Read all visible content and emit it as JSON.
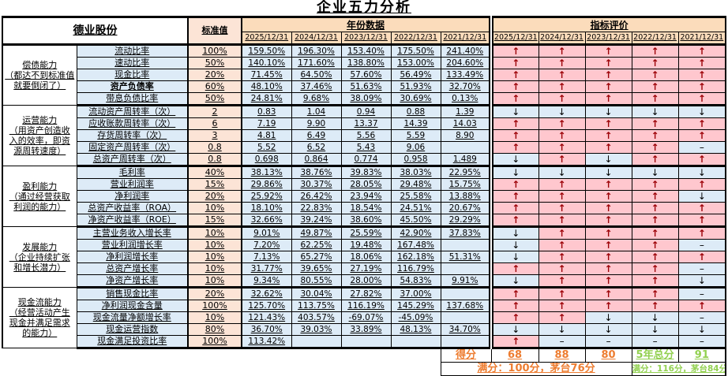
{
  "title": "企业五力分析",
  "company": "德业股份",
  "header": {
    "standard_col": "标准值",
    "data_group": "年份数据",
    "eval_group": "指标评价",
    "years": [
      "2025/12/31",
      "2024/12/31",
      "2023/12/31",
      "2022/12/31",
      "2021/12/31"
    ]
  },
  "eval_glyphs": {
    "up": "↑",
    "down": "↓",
    "dash": "–"
  },
  "colors": {
    "header_bg": "#FBDCBB",
    "standard_bg": "#FCE4D6",
    "data_bg": "#DDEBF7",
    "eval_up_bg": "#FFC7CE",
    "eval_up_arrow": "#9C0006",
    "score_orange": "#ED7D31",
    "score_green": "#92D050"
  },
  "sections": [
    {
      "name": "偿债能力\n（都达不到标准值\n就要倒闭了）",
      "rows": [
        {
          "name": "流动比率",
          "bold": false,
          "std": "100%",
          "values": [
            "159.50%",
            "196.30%",
            "153.40%",
            "175.50%",
            "241.40%"
          ],
          "evals": [
            "up",
            "up",
            "up",
            "up",
            "up"
          ]
        },
        {
          "name": "速动比率",
          "bold": false,
          "std": "50%",
          "values": [
            "140.10%",
            "171.60%",
            "138.80%",
            "153.00%",
            "204.60%"
          ],
          "evals": [
            "up",
            "up",
            "up",
            "up",
            "up"
          ]
        },
        {
          "name": "现金比率",
          "bold": false,
          "std": "20%",
          "values": [
            "71.45%",
            "64.50%",
            "57.60%",
            "56.49%",
            "133.49%"
          ],
          "evals": [
            "up",
            "up",
            "up",
            "up",
            "up"
          ]
        },
        {
          "name": "资产负债率",
          "bold": true,
          "std": "60%",
          "values": [
            "48.10%",
            "37.46%",
            "51.63%",
            "51.93%",
            "32.70%"
          ],
          "evals": [
            "up",
            "up",
            "up",
            "up",
            "up"
          ]
        },
        {
          "name": "带息负债比率",
          "bold": false,
          "std": "50%",
          "values": [
            "24.81%",
            "9.68%",
            "38.09%",
            "30.69%",
            "0.13%"
          ],
          "evals": [
            "up",
            "up",
            "up",
            "up",
            "up"
          ]
        }
      ]
    },
    {
      "name": "运营能力\n（用资产创造收\n入的效率，即资\n源周转速度）",
      "rows": [
        {
          "name": "流动资产周转率（次）",
          "bold": false,
          "std": "2",
          "values": [
            "0.83",
            "1.04",
            "0.94",
            "0.88",
            "1.39"
          ],
          "evals": [
            "down",
            "down",
            "down",
            "down",
            "down"
          ]
        },
        {
          "name": "应收账款周转率（次）",
          "bold": false,
          "std": "6",
          "values": [
            "7.19",
            "9.90",
            "13.37",
            "14.39",
            "14.03"
          ],
          "evals": [
            "up",
            "up",
            "up",
            "up",
            "up"
          ]
        },
        {
          "name": "存货周转率（次）",
          "bold": false,
          "std": "3",
          "values": [
            "4.81",
            "6.49",
            "5.56",
            "5.59",
            "8.90"
          ],
          "evals": [
            "up",
            "up",
            "up",
            "up",
            "up"
          ]
        },
        {
          "name": "固定资产周转率（次）",
          "bold": false,
          "std": "0.8",
          "values": [
            "5.52",
            "6.52",
            "5.43",
            "9.06",
            ""
          ],
          "evals": [
            "up",
            "up",
            "up",
            "up",
            "dash"
          ]
        },
        {
          "name": "总资产周转率（次）",
          "bold": false,
          "std": "0.8",
          "values": [
            "0.698",
            "0.864",
            "0.774",
            "0.958",
            "1.489"
          ],
          "evals": [
            "down",
            "up",
            "down",
            "up",
            "up"
          ]
        }
      ]
    },
    {
      "name": "盈利能力\n（通过经营获取\n利润的能力）",
      "rows": [
        {
          "name": "毛利率",
          "bold": false,
          "std": "40%",
          "values": [
            "38.13%",
            "38.76%",
            "39.83%",
            "38.03%",
            "22.95%"
          ],
          "evals": [
            "down",
            "down",
            "down",
            "down",
            "down"
          ]
        },
        {
          "name": "营业利润率",
          "bold": false,
          "std": "15%",
          "values": [
            "29.86%",
            "30.37%",
            "28.05%",
            "29.48%",
            "15.75%"
          ],
          "evals": [
            "up",
            "up",
            "up",
            "up",
            "up"
          ]
        },
        {
          "name": "净利润率",
          "bold": false,
          "std": "20%",
          "values": [
            "25.92%",
            "26.42%",
            "23.94%",
            "25.58%",
            "13.88%"
          ],
          "evals": [
            "up",
            "up",
            "up",
            "up",
            "down"
          ]
        },
        {
          "name": "总资产收益率（ROA）",
          "bold": false,
          "std": "10%",
          "values": [
            "18.10%",
            "22.83%",
            "18.54%",
            "24.51%",
            "20.67%"
          ],
          "evals": [
            "up",
            "up",
            "up",
            "up",
            "up"
          ]
        },
        {
          "name": "净资产收益率（ROE）",
          "bold": false,
          "std": "15%",
          "values": [
            "32.66%",
            "39.24%",
            "38.60%",
            "45.50%",
            "29.29%"
          ],
          "evals": [
            "up",
            "up",
            "up",
            "up",
            "up"
          ]
        }
      ]
    },
    {
      "name": "发展能力\n（企业持续扩张\n和增长潜力）",
      "rows": [
        {
          "name": "主营业务收入增长率",
          "bold": false,
          "std": "10%",
          "values": [
            "9.01%",
            "49.87%",
            "25.59%",
            "42.90%",
            "37.83%"
          ],
          "evals": [
            "down",
            "up",
            "up",
            "up",
            "up"
          ]
        },
        {
          "name": "营业利润增长率",
          "bold": false,
          "std": "10%",
          "values": [
            "7.20%",
            "62.25%",
            "19.48%",
            "167.48%",
            ""
          ],
          "evals": [
            "down",
            "up",
            "up",
            "up",
            "dash"
          ]
        },
        {
          "name": "净利润增长率",
          "bold": false,
          "std": "10%",
          "values": [
            "7.13%",
            "65.27%",
            "18.06%",
            "162.18%",
            "51.31%"
          ],
          "evals": [
            "down",
            "up",
            "up",
            "up",
            "up"
          ]
        },
        {
          "name": "总资产增长率",
          "bold": false,
          "std": "10%",
          "values": [
            "31.77%",
            "39.65%",
            "27.19%",
            "116.79%",
            ""
          ],
          "evals": [
            "up",
            "up",
            "up",
            "up",
            "dash"
          ]
        },
        {
          "name": "净资产增长率",
          "bold": false,
          "std": "10%",
          "values": [
            "9.34%",
            "80.55%",
            "28.00%",
            "54.83%",
            "9.91%"
          ],
          "evals": [
            "down",
            "up",
            "up",
            "up",
            "down"
          ]
        }
      ]
    },
    {
      "name": "现金流能力\n（经营活动产生\n现金并满足需求\n的能力）",
      "rows": [
        {
          "name": "销售现金比率",
          "bold": false,
          "std": "20%",
          "values": [
            "32.62%",
            "30.04%",
            "27.82%",
            "37.00%",
            ""
          ],
          "evals": [
            "up",
            "up",
            "up",
            "up",
            "dash"
          ]
        },
        {
          "name": "净利润现金含量",
          "bold": false,
          "std": "100%",
          "values": [
            "125.70%",
            "113.75%",
            "116.19%",
            "145.29%",
            "137.68%"
          ],
          "evals": [
            "up",
            "up",
            "up",
            "up",
            "up"
          ]
        },
        {
          "name": "现金流量净额增长率",
          "bold": false,
          "std": "10%",
          "values": [
            "121.43%",
            "403.57%",
            "-69.07%",
            "-45.09%",
            ""
          ],
          "evals": [
            "up",
            "up",
            "down",
            "down",
            "dash"
          ]
        },
        {
          "name": "现金运营指数",
          "bold": false,
          "std": "80%",
          "values": [
            "36.70%",
            "39.03%",
            "33.89%",
            "48.13%",
            "34.70%"
          ],
          "evals": [
            "down",
            "down",
            "down",
            "down",
            "down"
          ]
        },
        {
          "name": "现金满足投资比率",
          "bold": false,
          "std": "100%",
          "values": [
            "113.42%",
            "",
            "",
            "",
            ""
          ],
          "evals": [
            "up",
            "dash",
            "dash",
            "dash",
            "dash"
          ]
        }
      ]
    }
  ],
  "score": {
    "label": "得分",
    "values": [
      "68",
      "88",
      "80"
    ],
    "total_label": "5年总分",
    "total_value": "91",
    "note_left": "满分：100分，茅台76分",
    "note_right": "满分：116分，茅台84分"
  }
}
